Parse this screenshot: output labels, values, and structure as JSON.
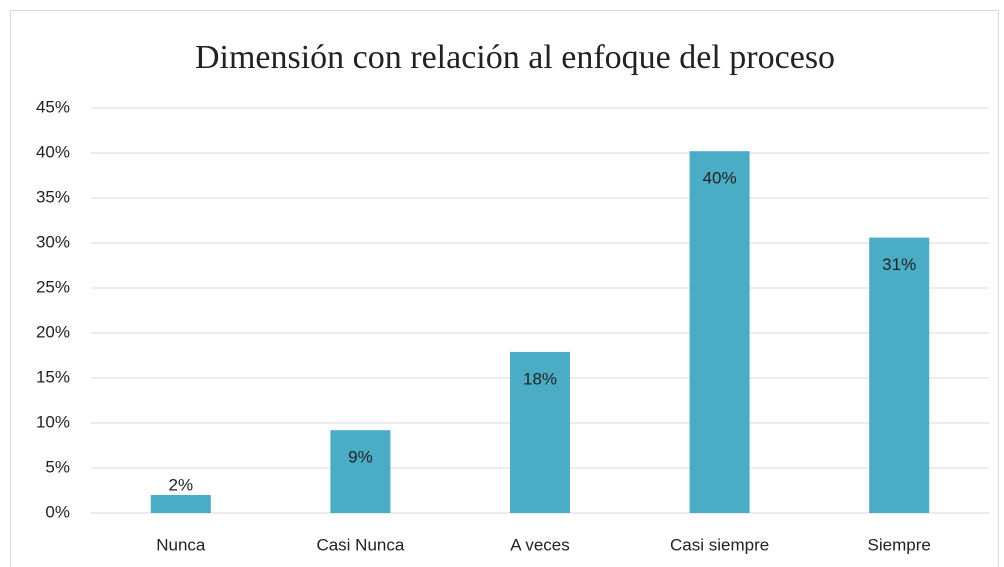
{
  "chart_data": {
    "type": "bar",
    "title": "Dimensión con relación al enfoque del proceso",
    "categories": [
      "Nunca",
      "Casi Nunca",
      "A veces",
      "Casi siempre",
      "Siempre"
    ],
    "values": [
      2.0,
      9.2,
      17.9,
      40.2,
      30.6
    ],
    "value_labels": [
      "2%",
      "9%",
      "18%",
      "40%",
      "31%"
    ],
    "color": "#4bacc6",
    "ylim": [
      0,
      45
    ],
    "yticks": [
      {
        "value": 0,
        "label": "0%"
      },
      {
        "value": 5,
        "label": "5%"
      },
      {
        "value": 10,
        "label": "10%"
      },
      {
        "value": 15,
        "label": "15%"
      },
      {
        "value": 20,
        "label": "20%"
      },
      {
        "value": 25,
        "label": "25%"
      },
      {
        "value": 30,
        "label": "30%"
      },
      {
        "value": 35,
        "label": "35%"
      },
      {
        "value": 40,
        "label": "40%"
      },
      {
        "value": 45,
        "label": "45%"
      }
    ],
    "grid": true
  }
}
